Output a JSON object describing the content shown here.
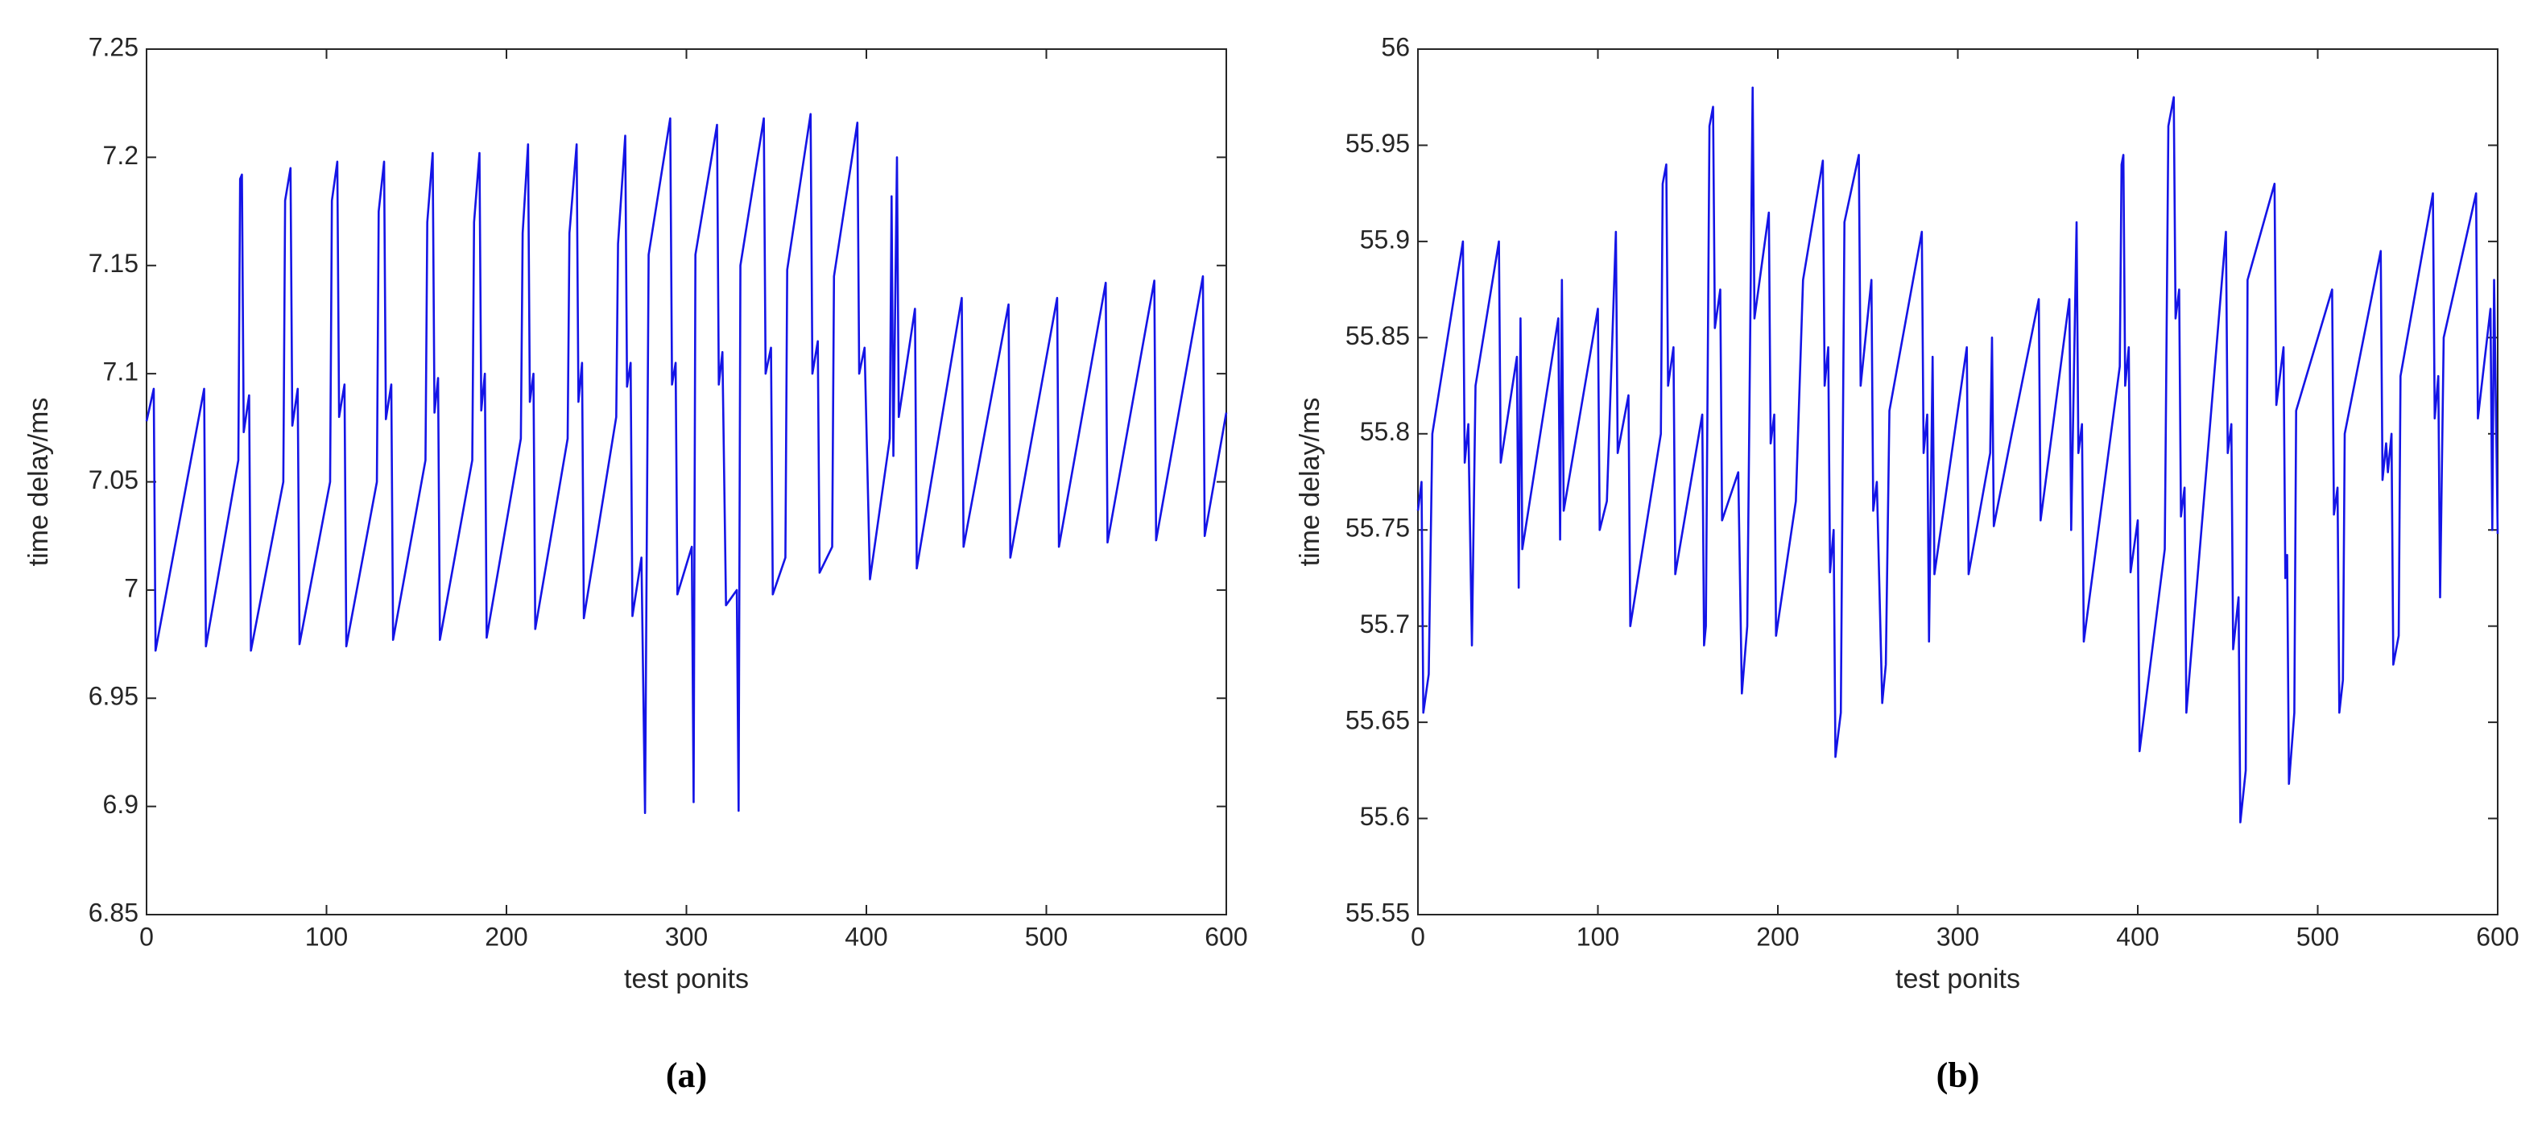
{
  "chart_data": [
    {
      "type": "line",
      "caption": "(a)",
      "xlabel": "test ponits",
      "ylabel": "time delay/ms",
      "xlim": [
        0,
        600
      ],
      "xticks": [
        0,
        100,
        200,
        300,
        400,
        500,
        600
      ],
      "ylim": [
        6.85,
        7.25
      ],
      "yticks": [
        6.85,
        6.9,
        6.95,
        7,
        7.05,
        7.1,
        7.15,
        7.2,
        7.25
      ],
      "series": [
        {
          "color": "#1414e6",
          "x": [
            0,
            4,
            5,
            32,
            33,
            51,
            52,
            53,
            54,
            57,
            58,
            76,
            77,
            80,
            81,
            84,
            85,
            102,
            103,
            106,
            107,
            110,
            111,
            128,
            129,
            132,
            133,
            136,
            137,
            155,
            156,
            159,
            160,
            162,
            163,
            181,
            182,
            185,
            186,
            188,
            189,
            208,
            209,
            212,
            213,
            215,
            216,
            234,
            235,
            239,
            240,
            242,
            243,
            261,
            262,
            266,
            267,
            269,
            270,
            275,
            277,
            279,
            291,
            292,
            294,
            295,
            303,
            304,
            305,
            317,
            318,
            320,
            322,
            328,
            329,
            330,
            343,
            344,
            347,
            348,
            355,
            356,
            369,
            370,
            373,
            374,
            381,
            382,
            395,
            396,
            399,
            402,
            413,
            414,
            415,
            417,
            418,
            427,
            428,
            453,
            454,
            479,
            480,
            506,
            507,
            533,
            534,
            560,
            561,
            587,
            588,
            600
          ],
          "values": [
            7.078,
            7.093,
            6.972,
            7.093,
            6.974,
            7.06,
            7.19,
            7.192,
            7.073,
            7.09,
            6.972,
            7.05,
            7.18,
            7.195,
            7.076,
            7.093,
            6.975,
            7.05,
            7.18,
            7.198,
            7.08,
            7.095,
            6.974,
            7.05,
            7.175,
            7.198,
            7.079,
            7.095,
            6.977,
            7.06,
            7.17,
            7.202,
            7.082,
            7.098,
            6.977,
            7.06,
            7.17,
            7.202,
            7.083,
            7.1,
            6.978,
            7.07,
            7.165,
            7.206,
            7.087,
            7.1,
            6.982,
            7.07,
            7.165,
            7.206,
            7.087,
            7.105,
            6.987,
            7.08,
            7.16,
            7.21,
            7.094,
            7.105,
            6.988,
            7.015,
            6.897,
            7.155,
            7.218,
            7.095,
            7.105,
            6.998,
            7.02,
            6.902,
            7.155,
            7.215,
            7.095,
            7.11,
            6.993,
            7.0,
            6.898,
            7.15,
            7.218,
            7.1,
            7.112,
            6.998,
            7.015,
            7.148,
            7.22,
            7.1,
            7.115,
            7.008,
            7.02,
            7.145,
            7.216,
            7.1,
            7.112,
            7.005,
            7.07,
            7.182,
            7.062,
            7.2,
            7.08,
            7.13,
            7.01,
            7.135,
            7.02,
            7.132,
            7.015,
            7.135,
            7.02,
            7.142,
            7.022,
            7.143,
            7.023,
            7.145,
            7.025,
            7.082
          ]
        }
      ]
    },
    {
      "type": "line",
      "caption": "(b)",
      "xlabel": "test ponits",
      "ylabel": "time delay/ms",
      "xlim": [
        0,
        600
      ],
      "xticks": [
        0,
        100,
        200,
        300,
        400,
        500,
        600
      ],
      "ylim": [
        55.55,
        56
      ],
      "yticks": [
        55.55,
        55.6,
        55.65,
        55.7,
        55.75,
        55.8,
        55.85,
        55.9,
        55.95,
        56
      ],
      "series": [
        {
          "color": "#1414e6",
          "x": [
            0,
            2,
            3,
            6,
            8,
            25,
            26,
            28,
            30,
            32,
            45,
            46,
            55,
            56,
            57,
            58,
            78,
            79,
            80,
            81,
            100,
            101,
            105,
            110,
            111,
            117,
            118,
            135,
            136,
            138,
            139,
            142,
            143,
            158,
            159,
            160,
            162,
            164,
            165,
            168,
            169,
            178,
            180,
            183,
            186,
            187,
            195,
            196,
            198,
            199,
            210,
            214,
            225,
            226,
            228,
            229,
            231,
            232,
            235,
            237,
            245,
            246,
            252,
            253,
            255,
            258,
            260,
            262,
            280,
            281,
            283,
            284,
            286,
            287,
            305,
            306,
            318,
            319,
            320,
            330,
            345,
            346,
            362,
            363,
            366,
            367,
            369,
            370,
            390,
            391,
            392,
            393,
            395,
            396,
            400,
            401,
            415,
            417,
            420,
            421,
            423,
            424,
            426,
            427,
            449,
            450,
            452,
            453,
            456,
            457,
            460,
            461,
            476,
            477,
            481,
            482,
            483,
            484,
            487,
            488,
            508,
            509,
            511,
            512,
            514,
            515,
            535,
            536,
            538,
            539,
            541,
            542,
            545,
            546,
            564,
            565,
            567,
            568,
            570,
            588,
            589,
            596,
            597,
            598,
            600
          ],
          "values": [
            55.76,
            55.775,
            55.655,
            55.675,
            55.8,
            55.9,
            55.785,
            55.805,
            55.69,
            55.825,
            55.9,
            55.785,
            55.84,
            55.72,
            55.86,
            55.74,
            55.86,
            55.745,
            55.88,
            55.76,
            55.865,
            55.75,
            55.765,
            55.905,
            55.79,
            55.82,
            55.7,
            55.8,
            55.93,
            55.94,
            55.825,
            55.845,
            55.727,
            55.81,
            55.69,
            55.7,
            55.96,
            55.97,
            55.855,
            55.875,
            55.755,
            55.78,
            55.665,
            55.7,
            55.98,
            55.86,
            55.915,
            55.795,
            55.81,
            55.695,
            55.765,
            55.88,
            55.942,
            55.825,
            55.845,
            55.728,
            55.75,
            55.632,
            55.655,
            55.91,
            55.945,
            55.825,
            55.88,
            55.76,
            55.775,
            55.66,
            55.68,
            55.812,
            55.905,
            55.79,
            55.81,
            55.692,
            55.84,
            55.727,
            55.845,
            55.727,
            55.79,
            55.85,
            55.752,
            55.8,
            55.87,
            55.755,
            55.87,
            55.75,
            55.91,
            55.79,
            55.805,
            55.692,
            55.835,
            55.94,
            55.945,
            55.825,
            55.845,
            55.728,
            55.755,
            55.635,
            55.74,
            55.96,
            55.975,
            55.86,
            55.875,
            55.757,
            55.772,
            55.655,
            55.905,
            55.79,
            55.805,
            55.688,
            55.715,
            55.598,
            55.625,
            55.88,
            55.93,
            55.815,
            55.845,
            55.725,
            55.737,
            55.618,
            55.655,
            55.812,
            55.875,
            55.758,
            55.772,
            55.655,
            55.672,
            55.8,
            55.895,
            55.776,
            55.795,
            55.78,
            55.8,
            55.68,
            55.695,
            55.83,
            55.925,
            55.808,
            55.83,
            55.715,
            55.85,
            55.925,
            55.808,
            55.865,
            55.75,
            55.88,
            55.748
          ]
        }
      ]
    }
  ]
}
